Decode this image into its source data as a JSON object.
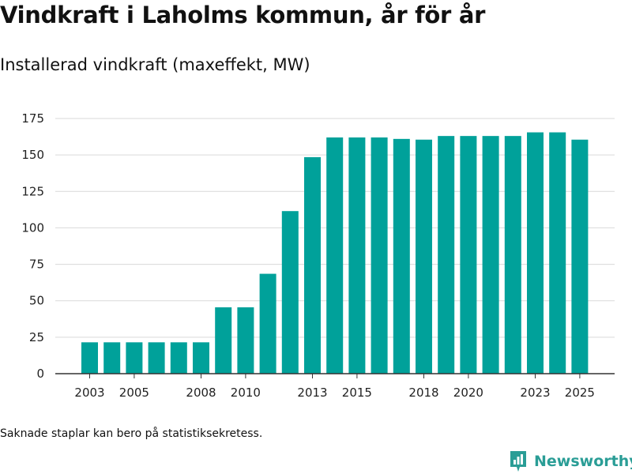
{
  "header": {
    "title": "Vindkraft i Laholms kommun, år för år",
    "subtitle": "Installerad vindkraft (maxeffekt, MW)"
  },
  "footer": {
    "note": "Saknade staplar kan bero på statistiksekretess.",
    "brand": "Newsworthy"
  },
  "colors": {
    "bar": "#00a19a",
    "grid": "#d9d9d9",
    "axis": "#333333",
    "brand": "#2a9d96"
  },
  "chart_data": {
    "type": "bar",
    "title": "Vindkraft i Laholms kommun, år för år",
    "subtitle": "Installerad vindkraft (maxeffekt, MW)",
    "xlabel": "",
    "ylabel": "",
    "categories": [
      "2003",
      "2004",
      "2005",
      "2006",
      "2007",
      "2008",
      "2009",
      "2010",
      "2011",
      "2012",
      "2013",
      "2014",
      "2015",
      "2016",
      "2017",
      "2018",
      "2019",
      "2020",
      "2021",
      "2022",
      "2023",
      "2024",
      "2025"
    ],
    "values": [
      21.5,
      21.5,
      21.5,
      21.5,
      21.5,
      21.5,
      45.5,
      45.5,
      68.5,
      111.5,
      148.5,
      162,
      162,
      162,
      161,
      160.5,
      163,
      163,
      163,
      163,
      165.5,
      165.5,
      160.5
    ],
    "x_tick_labels": [
      "2003",
      "2005",
      "2008",
      "2010",
      "2013",
      "2015",
      "2018",
      "2020",
      "2023",
      "2025"
    ],
    "y_ticks": [
      0,
      25,
      50,
      75,
      100,
      125,
      150,
      175
    ],
    "ylim": [
      0,
      175
    ],
    "grid": true,
    "legend": "none"
  }
}
